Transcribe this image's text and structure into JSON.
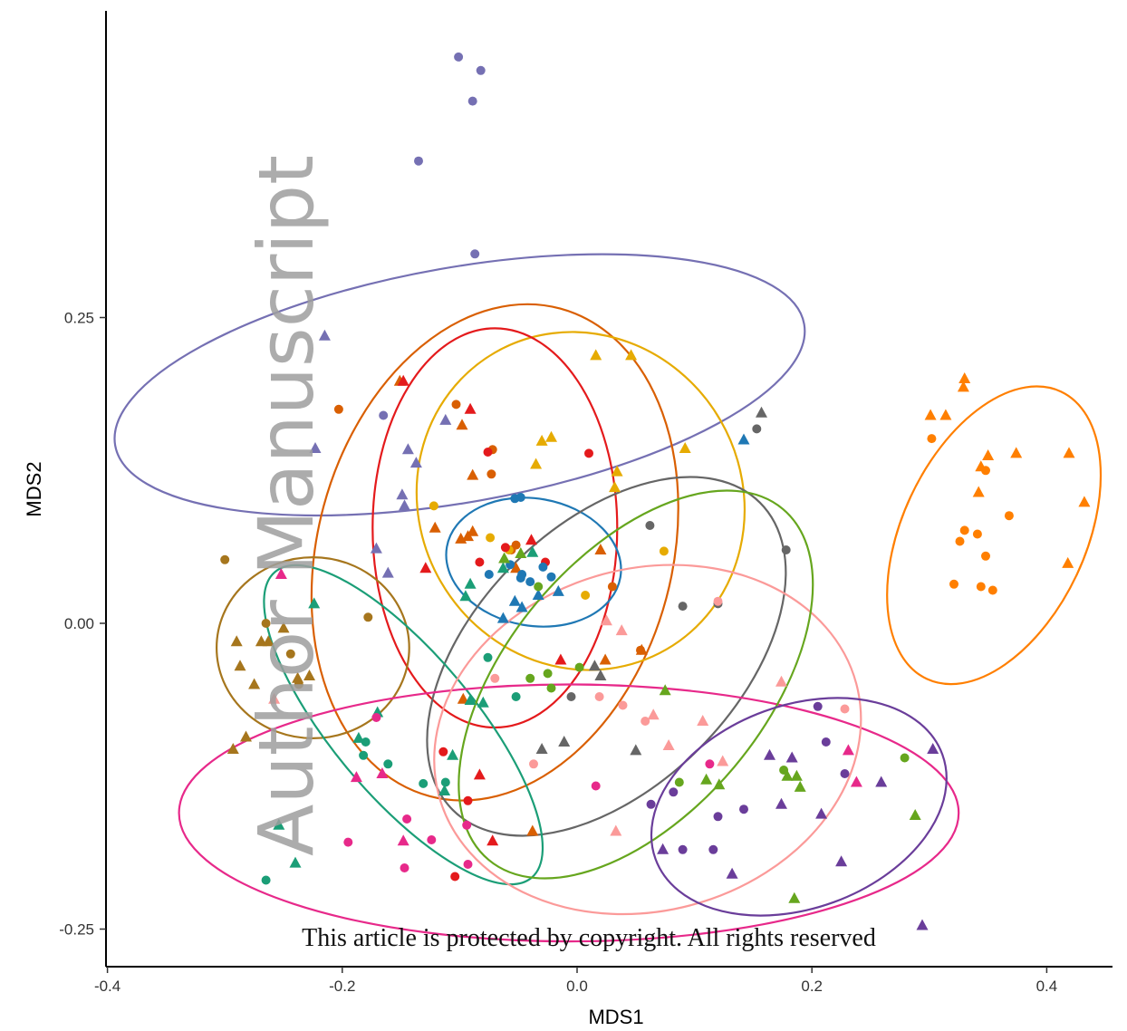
{
  "chart_data": {
    "type": "scatter",
    "title": "",
    "xlabel": "MDS1",
    "ylabel": "MDS2",
    "xlim": [
      -0.4,
      0.43
    ],
    "ylim": [
      -0.26,
      0.5
    ],
    "xticks": [
      -0.4,
      -0.2,
      0.0,
      0.2,
      0.4
    ],
    "xtick_labels": [
      "-0.4",
      "-0.2",
      "0.0",
      "0.2",
      "0.4"
    ],
    "yticks": [
      -0.25,
      0.0,
      0.25
    ],
    "ytick_labels": [
      "-0.25",
      "0.00",
      "0.25"
    ],
    "grid": false,
    "legend": "none",
    "marker_shapes": [
      "circle",
      "triangle"
    ],
    "series": [
      {
        "color": "#7570B3",
        "circles": [
          [
            -0.101,
            0.463
          ],
          [
            -0.082,
            0.452
          ],
          [
            -0.089,
            0.427
          ],
          [
            -0.135,
            0.378
          ],
          [
            -0.087,
            0.302
          ],
          [
            -0.165,
            0.17
          ]
        ],
        "triangles": [
          [
            -0.215,
            0.235
          ],
          [
            -0.223,
            0.143
          ],
          [
            -0.112,
            0.166
          ],
          [
            -0.144,
            0.142
          ],
          [
            -0.137,
            0.131
          ],
          [
            -0.149,
            0.105
          ],
          [
            -0.147,
            0.096
          ],
          [
            -0.171,
            0.061
          ],
          [
            -0.161,
            0.041
          ]
        ],
        "ellipse": {
          "cx": -0.1,
          "cy": 0.195,
          "rx": 0.1,
          "ry": 0.286,
          "rotation": -100
        }
      },
      {
        "color": "#D95F02",
        "circles": [
          [
            -0.203,
            0.175
          ],
          [
            -0.103,
            0.179
          ],
          [
            -0.073,
            0.122
          ],
          [
            -0.072,
            0.142
          ],
          [
            -0.052,
            0.064
          ],
          [
            -0.056,
            0.06
          ],
          [
            0.03,
            0.03
          ],
          [
            0.054,
            -0.022
          ]
        ],
        "triangles": [
          [
            -0.151,
            0.198
          ],
          [
            -0.098,
            0.162
          ],
          [
            -0.089,
            0.121
          ],
          [
            -0.121,
            0.078
          ],
          [
            -0.089,
            0.075
          ],
          [
            -0.093,
            0.071
          ],
          [
            -0.099,
            0.069
          ],
          [
            -0.097,
            -0.062
          ],
          [
            -0.052,
            0.045
          ],
          [
            -0.038,
            -0.17
          ],
          [
            0.02,
            0.06
          ],
          [
            0.024,
            -0.03
          ],
          [
            0.055,
            -0.022
          ]
        ],
        "ellipse": {
          "cx": -0.07,
          "cy": 0.058,
          "rx": 0.215,
          "ry": 0.145,
          "rotation": -75
        }
      },
      {
        "color": "#E6AB02",
        "circles": [
          [
            -0.122,
            0.096
          ],
          [
            -0.058,
            0.06
          ],
          [
            -0.074,
            0.07
          ],
          [
            0.007,
            0.023
          ],
          [
            0.074,
            0.059
          ]
        ],
        "triangles": [
          [
            0.016,
            0.219
          ],
          [
            0.046,
            0.219
          ],
          [
            -0.03,
            0.149
          ],
          [
            -0.022,
            0.152
          ],
          [
            0.092,
            0.143
          ],
          [
            -0.035,
            0.13
          ],
          [
            0.034,
            0.124
          ],
          [
            0.032,
            0.111
          ]
        ],
        "ellipse": {
          "cx": 0.003,
          "cy": 0.1,
          "rx": 0.146,
          "ry": 0.132,
          "rotation": -120
        }
      },
      {
        "color": "#E41A1C",
        "circles": [
          [
            -0.076,
            0.14
          ],
          [
            -0.083,
            0.05
          ],
          [
            -0.027,
            0.05
          ],
          [
            -0.061,
            0.062
          ],
          [
            0.01,
            0.139
          ],
          [
            -0.114,
            -0.105
          ],
          [
            -0.093,
            -0.145
          ],
          [
            -0.104,
            -0.207
          ]
        ],
        "triangles": [
          [
            -0.148,
            0.198
          ],
          [
            -0.091,
            0.175
          ],
          [
            -0.039,
            0.068
          ],
          [
            -0.129,
            0.045
          ],
          [
            -0.014,
            -0.03
          ],
          [
            -0.083,
            -0.124
          ],
          [
            -0.072,
            -0.178
          ]
        ],
        "ellipse": {
          "cx": -0.07,
          "cy": 0.078,
          "rx": 0.17,
          "ry": 0.1,
          "rotation": -90
        }
      },
      {
        "color": "#1F78B4",
        "circles": [
          [
            -0.053,
            0.102
          ],
          [
            -0.048,
            0.103
          ],
          [
            -0.075,
            0.04
          ],
          [
            -0.057,
            0.048
          ],
          [
            -0.047,
            0.04
          ],
          [
            -0.029,
            0.046
          ],
          [
            -0.022,
            0.038
          ],
          [
            -0.04,
            0.034
          ],
          [
            -0.048,
            0.037
          ]
        ],
        "triangles": [
          [
            0.142,
            0.15
          ],
          [
            -0.033,
            0.023
          ],
          [
            -0.047,
            0.013
          ],
          [
            -0.053,
            0.018
          ],
          [
            -0.016,
            0.026
          ],
          [
            -0.063,
            0.004
          ]
        ],
        "ellipse": {
          "cx": -0.037,
          "cy": 0.05,
          "rx": 0.075,
          "ry": 0.052,
          "rotation": -170
        }
      },
      {
        "color": "#666666",
        "circles": [
          [
            0.153,
            0.159
          ],
          [
            0.178,
            0.06
          ],
          [
            0.12,
            0.016
          ],
          [
            0.09,
            0.014
          ],
          [
            -0.005,
            -0.06
          ],
          [
            0.062,
            0.08
          ]
        ],
        "triangles": [
          [
            0.157,
            0.172
          ],
          [
            0.05,
            -0.104
          ],
          [
            -0.03,
            -0.103
          ],
          [
            -0.011,
            -0.097
          ],
          [
            0.02,
            -0.043
          ],
          [
            0.015,
            -0.035
          ]
        ],
        "ellipse": {
          "cx": 0.025,
          "cy": -0.027,
          "rx": 0.185,
          "ry": 0.107,
          "rotation": -45
        }
      },
      {
        "color": "#FF7F00",
        "circles": [
          [
            0.302,
            0.151
          ],
          [
            0.326,
            0.067
          ],
          [
            0.348,
            0.125
          ],
          [
            0.33,
            0.076
          ],
          [
            0.341,
            0.073
          ],
          [
            0.348,
            0.055
          ],
          [
            0.344,
            0.03
          ],
          [
            0.354,
            0.027
          ],
          [
            0.368,
            0.088
          ],
          [
            0.321,
            0.032
          ]
        ],
        "triangles": [
          [
            0.301,
            0.17
          ],
          [
            0.314,
            0.17
          ],
          [
            0.329,
            0.193
          ],
          [
            0.33,
            0.2
          ],
          [
            0.342,
            0.107
          ],
          [
            0.35,
            0.137
          ],
          [
            0.344,
            0.128
          ],
          [
            0.374,
            0.139
          ],
          [
            0.419,
            0.139
          ],
          [
            0.432,
            0.099
          ],
          [
            0.418,
            0.049
          ]
        ],
        "ellipse": {
          "cx": 0.355,
          "cy": 0.072,
          "rx": 0.135,
          "ry": 0.075,
          "rotation": -65
        }
      },
      {
        "color": "#A6761D",
        "circles": [
          [
            -0.3,
            0.052
          ],
          [
            -0.244,
            -0.025
          ],
          [
            -0.265,
            0.0
          ],
          [
            -0.237,
            -0.05
          ],
          [
            -0.178,
            0.005
          ]
        ],
        "triangles": [
          [
            -0.29,
            -0.015
          ],
          [
            -0.287,
            -0.035
          ],
          [
            -0.269,
            -0.015
          ],
          [
            -0.263,
            -0.015
          ],
          [
            -0.275,
            -0.05
          ],
          [
            -0.25,
            -0.004
          ],
          [
            -0.238,
            -0.045
          ],
          [
            -0.228,
            -0.043
          ],
          [
            -0.293,
            -0.103
          ],
          [
            -0.282,
            -0.093
          ]
        ],
        "ellipse": {
          "cx": -0.225,
          "cy": -0.02,
          "rx": 0.082,
          "ry": 0.074,
          "rotation": 0
        }
      },
      {
        "color": "#1B9E77",
        "circles": [
          [
            -0.18,
            -0.097
          ],
          [
            -0.182,
            -0.108
          ],
          [
            -0.161,
            -0.115
          ],
          [
            -0.131,
            -0.131
          ],
          [
            -0.112,
            -0.13
          ],
          [
            -0.076,
            -0.028
          ],
          [
            -0.052,
            -0.06
          ],
          [
            -0.265,
            -0.21
          ]
        ],
        "triangles": [
          [
            -0.224,
            0.016
          ],
          [
            -0.186,
            -0.094
          ],
          [
            -0.17,
            -0.073
          ],
          [
            -0.113,
            -0.137
          ],
          [
            -0.095,
            0.022
          ],
          [
            -0.091,
            0.032
          ],
          [
            -0.106,
            -0.108
          ],
          [
            -0.091,
            -0.063
          ],
          [
            -0.08,
            -0.065
          ],
          [
            -0.038,
            0.058
          ],
          [
            -0.063,
            0.045
          ],
          [
            -0.254,
            -0.165
          ],
          [
            -0.24,
            -0.196
          ]
        ],
        "ellipse": {
          "cx": -0.148,
          "cy": -0.083,
          "rx": 0.17,
          "ry": 0.058,
          "rotation": -130
        }
      },
      {
        "color": "#E7298A",
        "circles": [
          [
            -0.171,
            -0.077
          ],
          [
            -0.145,
            -0.16
          ],
          [
            -0.124,
            -0.177
          ],
          [
            -0.094,
            -0.165
          ],
          [
            -0.093,
            -0.197
          ],
          [
            -0.195,
            -0.179
          ],
          [
            -0.147,
            -0.2
          ],
          [
            0.016,
            -0.133
          ],
          [
            0.113,
            -0.115
          ]
        ],
        "triangles": [
          [
            -0.252,
            0.04
          ],
          [
            -0.148,
            -0.178
          ],
          [
            -0.188,
            -0.126
          ],
          [
            -0.166,
            -0.123
          ],
          [
            0.231,
            -0.104
          ],
          [
            0.238,
            -0.13
          ]
        ],
        "ellipse": {
          "cx": -0.007,
          "cy": -0.155,
          "rx": 0.332,
          "ry": 0.105,
          "rotation": 0
        }
      },
      {
        "color": "#FB9A99",
        "circles": [
          [
            -0.07,
            -0.045
          ],
          [
            -0.037,
            -0.115
          ],
          [
            0.058,
            -0.08
          ],
          [
            0.12,
            0.018
          ],
          [
            0.228,
            -0.07
          ],
          [
            0.039,
            -0.067
          ],
          [
            0.019,
            -0.06
          ]
        ],
        "triangles": [
          [
            -0.258,
            -0.062
          ],
          [
            0.038,
            -0.006
          ],
          [
            0.065,
            -0.075
          ],
          [
            0.107,
            -0.08
          ],
          [
            0.124,
            -0.113
          ],
          [
            0.174,
            -0.048
          ],
          [
            0.033,
            -0.17
          ],
          [
            0.025,
            0.002
          ],
          [
            0.078,
            -0.1
          ]
        ],
        "ellipse": {
          "cx": 0.06,
          "cy": -0.095,
          "rx": 0.184,
          "ry": 0.14,
          "rotation": -15
        }
      },
      {
        "color": "#66A61E",
        "circles": [
          [
            -0.033,
            0.03
          ],
          [
            -0.04,
            -0.045
          ],
          [
            -0.025,
            -0.041
          ],
          [
            -0.022,
            -0.053
          ],
          [
            0.002,
            -0.036
          ],
          [
            0.087,
            -0.13
          ],
          [
            0.176,
            -0.12
          ],
          [
            0.279,
            -0.11
          ]
        ],
        "triangles": [
          [
            -0.062,
            0.053
          ],
          [
            -0.048,
            0.057
          ],
          [
            0.075,
            -0.055
          ],
          [
            0.11,
            -0.128
          ],
          [
            0.121,
            -0.132
          ],
          [
            0.179,
            -0.125
          ],
          [
            0.187,
            -0.125
          ],
          [
            0.185,
            -0.225
          ],
          [
            0.19,
            -0.134
          ],
          [
            0.288,
            -0.157
          ]
        ],
        "ellipse": {
          "cx": 0.05,
          "cy": -0.05,
          "rx": 0.195,
          "ry": 0.105,
          "rotation": -50
        }
      },
      {
        "color": "#6A3D9A",
        "circles": [
          [
            0.205,
            -0.068
          ],
          [
            0.212,
            -0.097
          ],
          [
            0.228,
            -0.123
          ],
          [
            0.116,
            -0.185
          ],
          [
            0.09,
            -0.185
          ],
          [
            0.12,
            -0.158
          ],
          [
            0.142,
            -0.152
          ],
          [
            0.063,
            -0.148
          ],
          [
            0.082,
            -0.138
          ]
        ],
        "triangles": [
          [
            0.164,
            -0.108
          ],
          [
            0.174,
            -0.148
          ],
          [
            0.183,
            -0.11
          ],
          [
            0.208,
            -0.156
          ],
          [
            0.225,
            -0.195
          ],
          [
            0.259,
            -0.13
          ],
          [
            0.303,
            -0.103
          ],
          [
            0.073,
            -0.185
          ],
          [
            0.132,
            -0.205
          ],
          [
            0.294,
            -0.247
          ]
        ],
        "ellipse": {
          "cx": 0.189,
          "cy": -0.15,
          "rx": 0.13,
          "ry": 0.083,
          "rotation": -20
        }
      }
    ]
  },
  "watermark": "Author Manuscript",
  "notice": "This article is protected by copyright. All rights reserved"
}
